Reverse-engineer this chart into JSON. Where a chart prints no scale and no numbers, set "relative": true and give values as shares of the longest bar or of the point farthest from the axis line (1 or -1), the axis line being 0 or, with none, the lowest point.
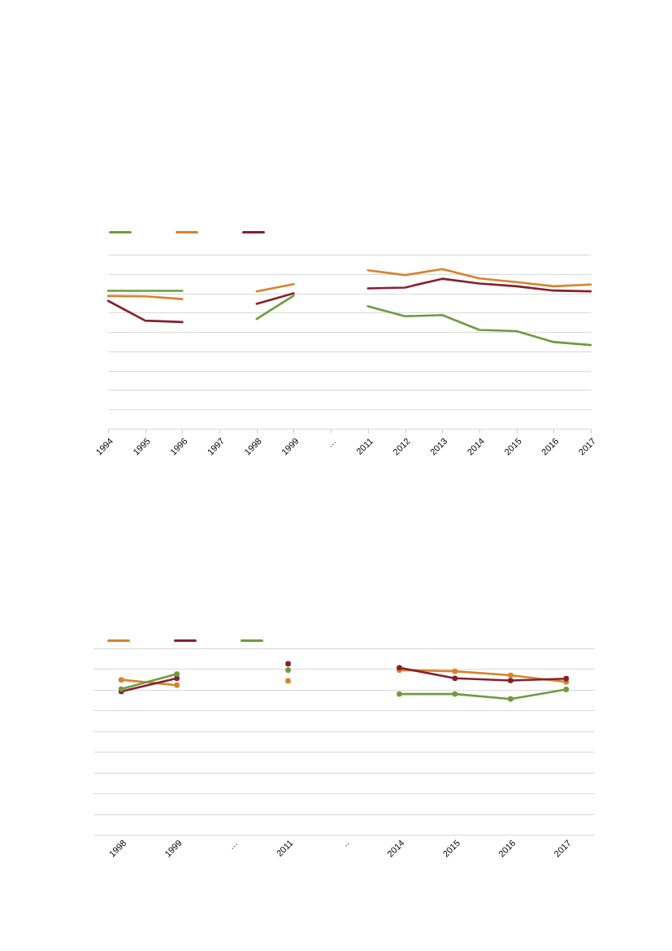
{
  "chart_data": [
    {
      "type": "line",
      "relative": true,
      "categories": [
        "1994",
        "1995",
        "1996",
        "1997",
        "1998",
        "1999",
        "…",
        "2011",
        "2012",
        "2013",
        "2014",
        "2015",
        "2016",
        "2017"
      ],
      "grid": "y",
      "marker": "none",
      "line_style": "solid",
      "series": [
        {
          "color": "#6f9b3f",
          "values": [
            0.863,
            0.863,
            0.863,
            null,
            0.687,
            0.833,
            null,
            0.767,
            0.704,
            0.712,
            0.619,
            0.611,
            0.543,
            0.524
          ]
        },
        {
          "color": "#d9822b",
          "values": [
            0.831,
            0.829,
            0.812,
            null,
            0.86,
            0.905,
            null,
            0.992,
            0.962,
            1,
            0.941,
            0.918,
            0.892,
            0.903
          ]
        },
        {
          "color": "#861f30",
          "values": [
            0.801,
            0.677,
            0.668,
            null,
            0.782,
            0.848,
            null,
            0.879,
            0.884,
            0.939,
            0.909,
            0.892,
            0.865,
            0.86
          ]
        }
      ]
    },
    {
      "type": "line",
      "relative": true,
      "categories": [
        "1998",
        "1999",
        "…",
        "2011",
        "..",
        "2014",
        "2015",
        "2016",
        "2017"
      ],
      "grid": "y",
      "marker": "circle",
      "line_style": "solid",
      "series": [
        {
          "color": "#d9822b",
          "values": [
            0.906,
            0.875,
            null,
            0.9,
            null,
            0.963,
            0.956,
            0.933,
            0.894
          ]
        },
        {
          "color": "#861f30",
          "values": [
            0.838,
            0.915,
            null,
            1,
            null,
            0.977,
            0.915,
            0.902,
            0.913
          ]
        },
        {
          "color": "#6f9b3f",
          "values": [
            0.852,
            0.94,
            null,
            0.963,
            null,
            0.823,
            0.823,
            0.794,
            0.85
          ]
        }
      ]
    }
  ]
}
